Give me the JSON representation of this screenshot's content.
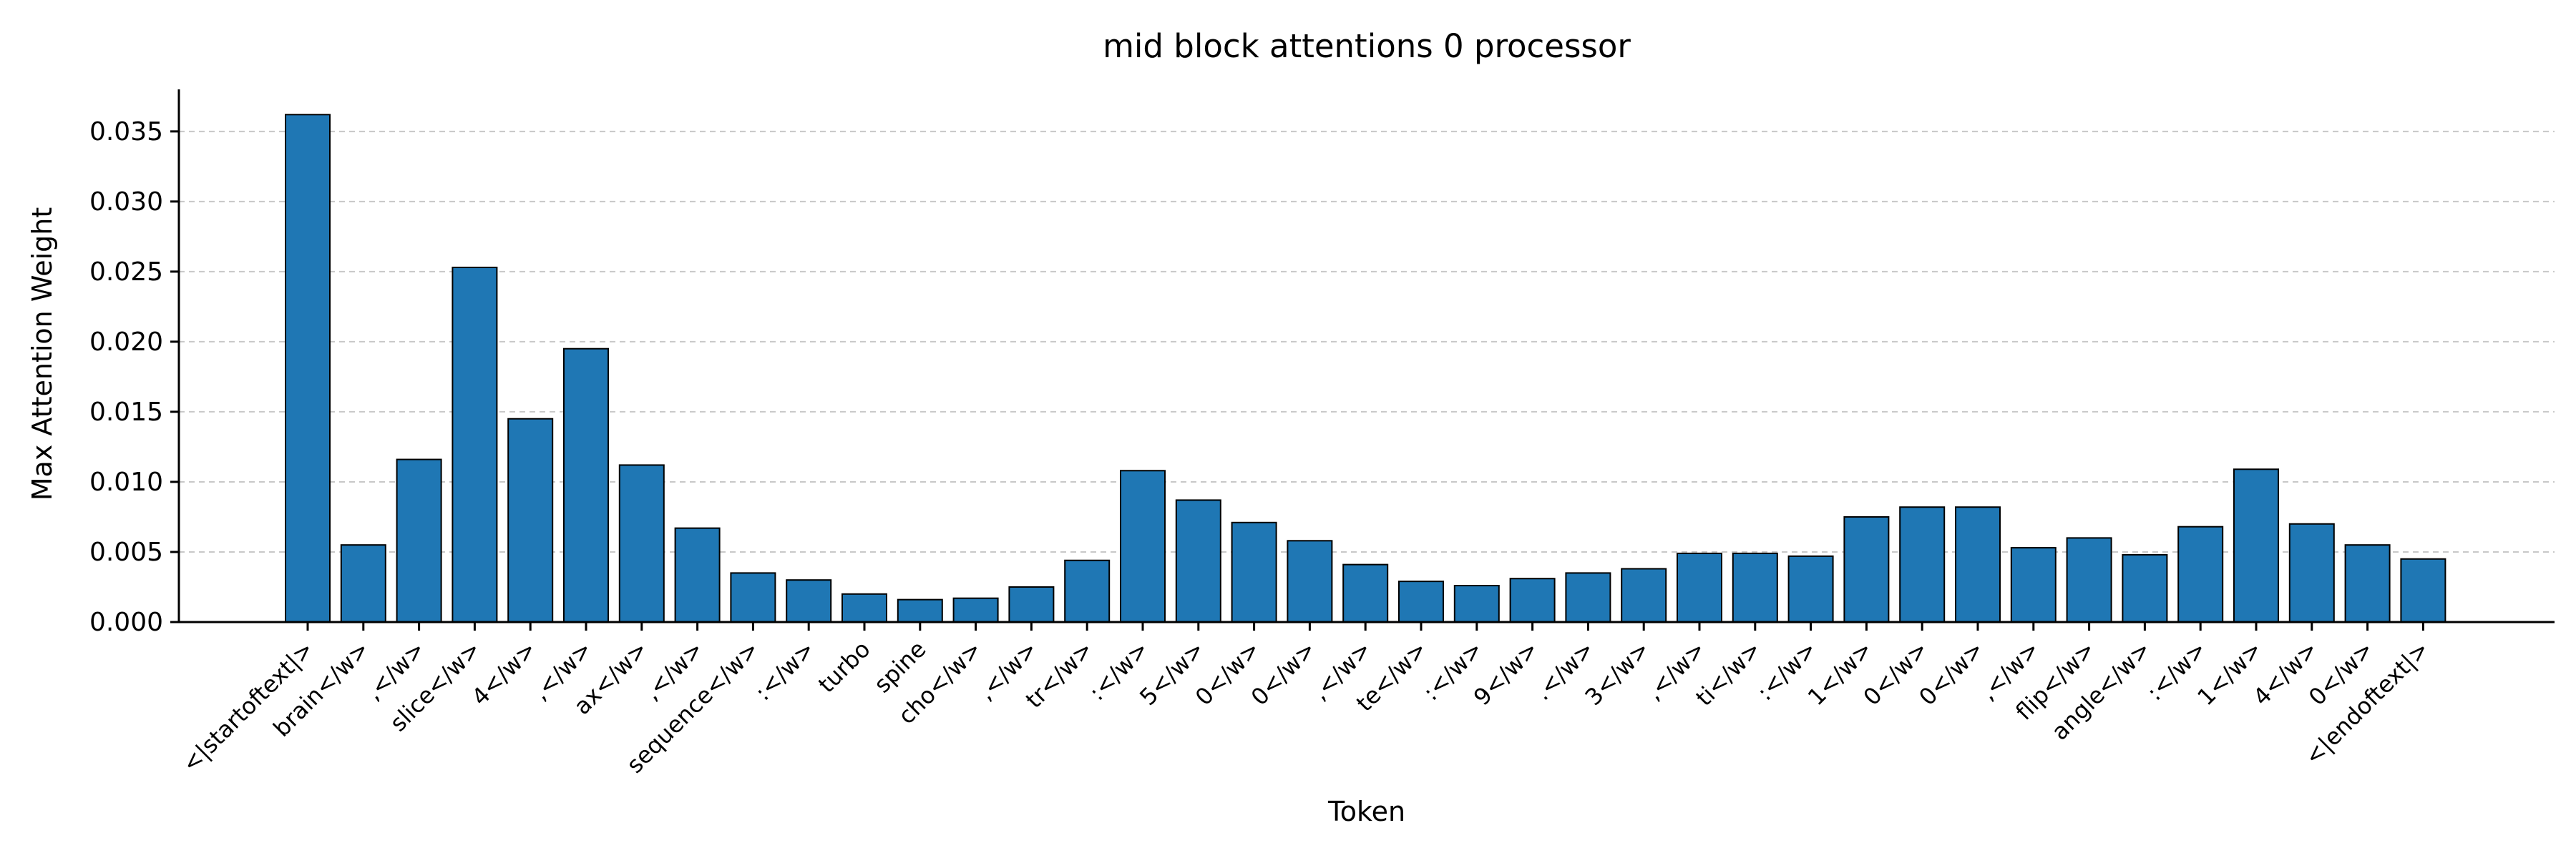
{
  "chart_data": {
    "type": "bar",
    "title": "mid block attentions 0 processor",
    "xlabel": "Token",
    "ylabel": "Max Attention Weight",
    "ylim": [
      0,
      0.038
    ],
    "yticks": [
      "0.000",
      "0.005",
      "0.010",
      "0.015",
      "0.020",
      "0.025",
      "0.030",
      "0.035"
    ],
    "grid": "y-dashed",
    "bar_color": "#1f77b4",
    "categories": [
      "<|startoftext|>",
      "brain</w>",
      ",</w>",
      "slice</w>",
      "4</w>",
      ",</w>",
      "ax</w>",
      ",</w>",
      "sequence</w>",
      ":</w>",
      "turbo",
      "spine",
      "cho</w>",
      ",</w>",
      "tr</w>",
      ":</w>",
      "5</w>",
      "0</w>",
      "0</w>",
      ",</w>",
      "te</w>",
      ":</w>",
      "9</w>",
      ".</w>",
      "3</w>",
      ",</w>",
      "ti</w>",
      ":</w>",
      "1</w>",
      "0</w>",
      "0</w>",
      ",</w>",
      "flip</w>",
      "angle</w>",
      ":</w>",
      "1</w>",
      "4</w>",
      "0</w>",
      "<|endoftext|>"
    ],
    "values": [
      0.0362,
      0.0055,
      0.0116,
      0.0253,
      0.0145,
      0.0195,
      0.0112,
      0.0067,
      0.0035,
      0.003,
      0.002,
      0.0016,
      0.0017,
      0.0025,
      0.0044,
      0.0108,
      0.0087,
      0.0071,
      0.0058,
      0.0041,
      0.0029,
      0.0026,
      0.0031,
      0.0035,
      0.0038,
      0.0049,
      0.0049,
      0.0047,
      0.0075,
      0.0082,
      0.0082,
      0.0053,
      0.006,
      0.0048,
      0.0068,
      0.0109,
      0.007,
      0.0055,
      0.0045
    ]
  }
}
